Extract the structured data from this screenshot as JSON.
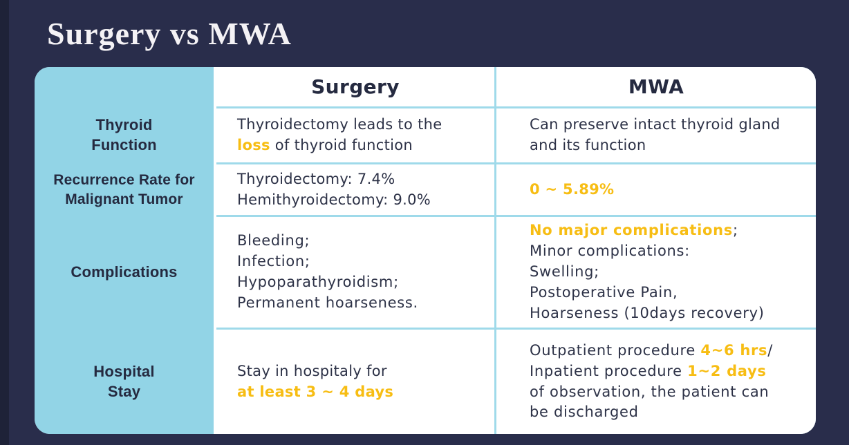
{
  "title": "Surgery vs MWA",
  "colors": {
    "background": "#292D4B",
    "panel_blue": "#92D4E6",
    "grid_line": "#9FDAEA",
    "highlight_yellow": "#F7BD13",
    "text_dark": "#2D3247",
    "cell_white": "#FFFFFF"
  },
  "table": {
    "columns": [
      "Surgery",
      "MWA"
    ],
    "rows": [
      {
        "header": "Thyroid\nFunction",
        "surgery": [
          {
            "t": "Thyroidectomy leads to the\n"
          },
          {
            "t": "loss",
            "hl": true
          },
          {
            "t": " of thyroid function"
          }
        ],
        "mwa": [
          {
            "t": "Can preserve intact thyroid gland\nand its function"
          }
        ]
      },
      {
        "header": "Recurrence Rate for\nMalignant Tumor",
        "surgery": [
          {
            "t": "Thyroidectomy: 7.4%\nHemithyroidectomy: 9.0%"
          }
        ],
        "mwa": [
          {
            "t": "0 ~ 5.89%",
            "hl": true
          }
        ]
      },
      {
        "header": "Complications",
        "surgery": [
          {
            "t": "Bleeding;\nInfection;\nHypoparathyroidism;\nPermanent hoarseness."
          }
        ],
        "mwa": [
          {
            "t": "No major complications",
            "hl": true
          },
          {
            "t": ";\nMinor complications:\nSwelling;\nPostoperative Pain,\nHoarseness (10days recovery)"
          }
        ]
      },
      {
        "header": "Hospital\nStay",
        "surgery": [
          {
            "t": "Stay in hospitaly for\n"
          },
          {
            "t": "at least 3 ~ 4 days",
            "hl": true
          }
        ],
        "mwa": [
          {
            "t": "Outpatient procedure "
          },
          {
            "t": "4~6 hrs",
            "hl": true
          },
          {
            "t": "/\nInpatient procedure "
          },
          {
            "t": "1~2 days",
            "hl": true
          },
          {
            "t": "\nof observation, the patient can\nbe discharged"
          }
        ]
      }
    ]
  }
}
